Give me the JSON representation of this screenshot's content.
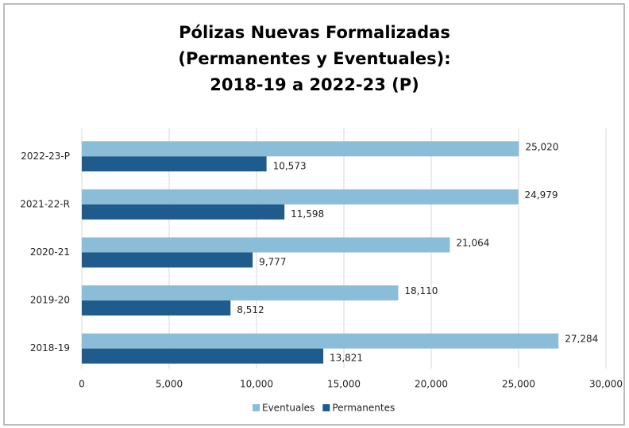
{
  "chart_data": {
    "type": "bar",
    "orientation": "horizontal",
    "title": [
      "Pólizas Nuevas Formalizadas",
      "(Permanentes  y Eventuales):",
      "2018-19 a 2022-23 (P)"
    ],
    "categories": [
      "2022-23-P",
      "2021-22-R",
      "2020-21",
      "2019-20",
      "2018-19"
    ],
    "series": [
      {
        "name": "Eventuales",
        "color": "#8bbcd8",
        "values": [
          25020,
          24979,
          21064,
          18110,
          27284
        ],
        "value_labels": [
          "25,020",
          "24,979",
          "21,064",
          "18,110",
          "27,284"
        ]
      },
      {
        "name": "Permanentes",
        "color": "#1f5c8c",
        "values": [
          10573,
          11598,
          9777,
          8512,
          13821
        ],
        "value_labels": [
          "10,573",
          "11,598",
          "9,777",
          "8,512",
          "13,821"
        ]
      }
    ],
    "xlim": [
      0,
      30000
    ],
    "xticks": [
      0,
      {
        "value": 5000,
        "label": "5,000"
      },
      {
        "value": 10000,
        "label": "10,000"
      },
      {
        "value": 15000,
        "label": "15,000"
      },
      {
        "value": 20000,
        "label": "20,000"
      },
      {
        "value": 25000,
        "label": "25,000"
      },
      {
        "value": 30000,
        "label": "30,000"
      }
    ],
    "grid": true,
    "legend": "bottom"
  }
}
